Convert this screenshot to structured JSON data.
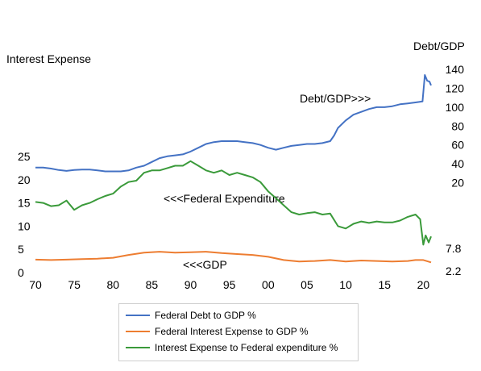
{
  "chart_data": {
    "type": "line",
    "left_axis_title": "Interest Expense",
    "right_axis_title": "Debt/GDP",
    "x_ticks": [
      "70",
      "75",
      "80",
      "85",
      "90",
      "95",
      "00",
      "05",
      "10",
      "15",
      "20"
    ],
    "left_ticks": [
      "0",
      "5",
      "10",
      "15",
      "20",
      "25"
    ],
    "right_ticks": [
      "20",
      "40",
      "60",
      "80",
      "100",
      "120",
      "140"
    ],
    "end_labels": [
      "7.8",
      "2.2"
    ],
    "annotations": {
      "debt": "Debt/GDP>>>",
      "expenditure": "<<<Federal Expenditure",
      "gdp": "<<<GDP"
    },
    "xlim": [
      1970,
      2021
    ],
    "left_ylim": [
      0,
      25
    ],
    "right_ylim": [
      0,
      140
    ],
    "grid": false,
    "legend_position": "bottom",
    "series": [
      {
        "name": "Federal Debt to GDP %",
        "axis": "right",
        "color": "#4472C4",
        "x": [
          1970,
          1971,
          1972,
          1973,
          1974,
          1975,
          1976,
          1977,
          1978,
          1979,
          1980,
          1981,
          1982,
          1983,
          1984,
          1985,
          1986,
          1987,
          1988,
          1989,
          1990,
          1991,
          1992,
          1993,
          1994,
          1995,
          1996,
          1997,
          1998,
          1999,
          2000,
          2001,
          2002,
          2003,
          2004,
          2005,
          2006,
          2007,
          2008,
          2008.5,
          2009,
          2010,
          2011,
          2012,
          2013,
          2014,
          2015,
          2016,
          2017,
          2018,
          2019,
          2019.9,
          2020.2,
          2020.5,
          2020.8,
          2021
        ],
        "values": [
          36,
          36,
          35,
          33.5,
          32.5,
          33.5,
          34,
          34,
          33,
          32,
          32,
          32,
          33,
          36,
          38,
          42,
          46,
          48,
          49,
          50,
          53,
          57,
          61,
          63,
          64,
          64,
          64,
          63,
          62,
          60,
          57,
          55,
          57,
          59,
          60,
          61,
          61,
          62,
          64,
          70,
          78,
          86,
          92,
          95,
          98,
          100,
          100,
          101,
          103,
          104,
          105,
          106,
          134,
          128,
          127,
          123
        ]
      },
      {
        "name": "Federal Interest Expense to GDP %",
        "axis": "left",
        "color": "#ED7D31",
        "x": [
          1970,
          1972,
          1974,
          1976,
          1978,
          1980,
          1982,
          1984,
          1986,
          1988,
          1990,
          1992,
          1994,
          1996,
          1998,
          2000,
          2002,
          2004,
          2006,
          2008,
          2010,
          2012,
          2014,
          2016,
          2018,
          2019,
          2020,
          2021
        ],
        "values": [
          2.8,
          2.7,
          2.8,
          2.9,
          3.0,
          3.2,
          3.8,
          4.3,
          4.5,
          4.3,
          4.4,
          4.5,
          4.2,
          4.0,
          3.8,
          3.4,
          2.7,
          2.4,
          2.5,
          2.7,
          2.4,
          2.6,
          2.5,
          2.4,
          2.5,
          2.7,
          2.7,
          2.2
        ]
      },
      {
        "name": "Interest Expense to Federal expenditure %",
        "axis": "left",
        "color": "#3A9A3A",
        "x": [
          1970,
          1971,
          1972,
          1973,
          1974,
          1975,
          1976,
          1977,
          1978,
          1979,
          1980,
          1981,
          1982,
          1983,
          1984,
          1985,
          1986,
          1987,
          1988,
          1989,
          1990,
          1991,
          1992,
          1993,
          1994,
          1995,
          1996,
          1997,
          1998,
          1999,
          2000,
          2001,
          2002,
          2003,
          2004,
          2005,
          2006,
          2007,
          2008,
          2009,
          2010,
          2011,
          2012,
          2013,
          2014,
          2015,
          2016,
          2017,
          2018,
          2019,
          2019.6,
          2020,
          2020.3,
          2020.7,
          2021
        ],
        "values": [
          15.2,
          15.0,
          14.3,
          14.5,
          15.5,
          13.5,
          14.5,
          15.0,
          15.8,
          16.5,
          17.0,
          18.5,
          19.5,
          19.8,
          21.5,
          22.0,
          22.0,
          22.5,
          23.0,
          23.0,
          24.0,
          23.0,
          22.0,
          21.5,
          22.0,
          21.0,
          21.5,
          21.0,
          20.5,
          19.5,
          17.5,
          16.0,
          14.5,
          13.0,
          12.5,
          12.8,
          13.0,
          12.5,
          12.7,
          10.0,
          9.5,
          10.5,
          11.0,
          10.7,
          11.0,
          10.8,
          10.8,
          11.2,
          12.0,
          12.5,
          11.5,
          6.0,
          8.0,
          6.5,
          7.8
        ]
      }
    ]
  }
}
